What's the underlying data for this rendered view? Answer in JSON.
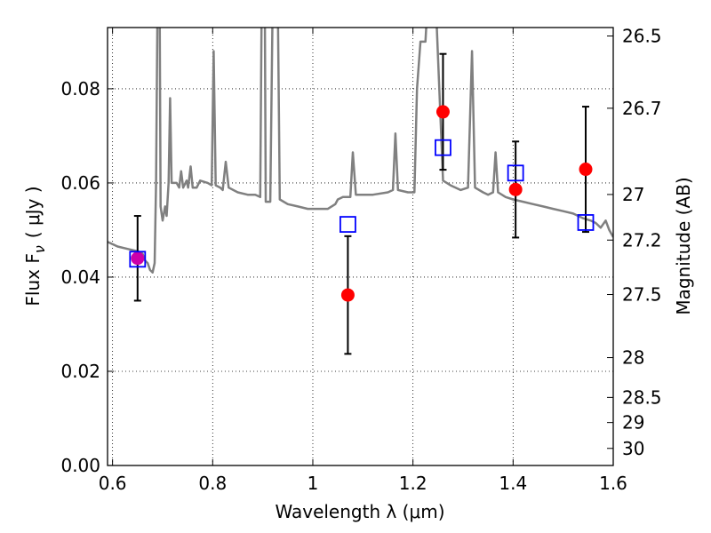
{
  "chart_data": {
    "type": "scatter",
    "xlabel": "Wavelength  λ (μm)",
    "ylabel": "Flux  F",
    "ylabel_sub": "ν",
    "ylabel_unit": "( μJy )",
    "ylabel_right": "Magnitude (AB)",
    "xlim": [
      0.59,
      1.6
    ],
    "ylim": [
      0.0,
      0.093
    ],
    "grid": true,
    "grid_style": "dotted",
    "x_ticks": [
      {
        "value": 0.6,
        "label": "0.6"
      },
      {
        "value": 0.8,
        "label": "0.8"
      },
      {
        "value": 1.0,
        "label": "1"
      },
      {
        "value": 1.2,
        "label": "1.2"
      },
      {
        "value": 1.4,
        "label": "1.4"
      },
      {
        "value": 1.6,
        "label": "1.6"
      }
    ],
    "y_ticks": [
      {
        "value": 0.0,
        "label": "0.00"
      },
      {
        "value": 0.02,
        "label": "0.02"
      },
      {
        "value": 0.04,
        "label": "0.04"
      },
      {
        "value": 0.06,
        "label": "0.06"
      },
      {
        "value": 0.08,
        "label": "0.08"
      }
    ],
    "right_ticks": [
      {
        "mag": 26.5,
        "label": "26.5"
      },
      {
        "mag": 26.7,
        "label": "26.7"
      },
      {
        "mag": 27.0,
        "label": "27"
      },
      {
        "mag": 27.2,
        "label": "27.2"
      },
      {
        "mag": 27.5,
        "label": "27.5"
      },
      {
        "mag": 28.0,
        "label": "28"
      },
      {
        "mag": 28.5,
        "label": "28.5"
      },
      {
        "mag": 29.0,
        "label": "29"
      },
      {
        "mag": 30.0,
        "label": "30"
      }
    ],
    "series": [
      {
        "kind": "line",
        "color": "#808080",
        "points": [
          [
            0.59,
            0.0475
          ],
          [
            0.61,
            0.0465
          ],
          [
            0.63,
            0.046
          ],
          [
            0.65,
            0.0455
          ],
          [
            0.66,
            0.045
          ],
          [
            0.665,
            0.0435
          ],
          [
            0.67,
            0.043
          ],
          [
            0.675,
            0.0415
          ],
          [
            0.68,
            0.041
          ],
          [
            0.684,
            0.043
          ],
          [
            0.687,
            0.06
          ],
          [
            0.69,
            0.1
          ],
          [
            0.694,
            0.1
          ],
          [
            0.696,
            0.055
          ],
          [
            0.7,
            0.052
          ],
          [
            0.705,
            0.055
          ],
          [
            0.708,
            0.053
          ],
          [
            0.712,
            0.06
          ],
          [
            0.715,
            0.078
          ],
          [
            0.718,
            0.06
          ],
          [
            0.722,
            0.06
          ],
          [
            0.728,
            0.06
          ],
          [
            0.733,
            0.059
          ],
          [
            0.737,
            0.0625
          ],
          [
            0.741,
            0.059
          ],
          [
            0.748,
            0.0605
          ],
          [
            0.751,
            0.059
          ],
          [
            0.756,
            0.0635
          ],
          [
            0.76,
            0.059
          ],
          [
            0.768,
            0.059
          ],
          [
            0.775,
            0.0605
          ],
          [
            0.79,
            0.06
          ],
          [
            0.798,
            0.0595
          ],
          [
            0.802,
            0.088
          ],
          [
            0.806,
            0.0595
          ],
          [
            0.815,
            0.059
          ],
          [
            0.82,
            0.0585
          ],
          [
            0.826,
            0.0645
          ],
          [
            0.832,
            0.059
          ],
          [
            0.85,
            0.058
          ],
          [
            0.87,
            0.0575
          ],
          [
            0.885,
            0.0575
          ],
          [
            0.895,
            0.057
          ],
          [
            0.898,
            0.1
          ],
          [
            0.904,
            0.1
          ],
          [
            0.906,
            0.056
          ],
          [
            0.915,
            0.056
          ],
          [
            0.92,
            0.1
          ],
          [
            0.93,
            0.1
          ],
          [
            0.934,
            0.0565
          ],
          [
            0.95,
            0.0555
          ],
          [
            0.97,
            0.055
          ],
          [
            0.99,
            0.0545
          ],
          [
            1.01,
            0.0545
          ],
          [
            1.03,
            0.0545
          ],
          [
            1.045,
            0.0555
          ],
          [
            1.05,
            0.0565
          ],
          [
            1.06,
            0.057
          ],
          [
            1.075,
            0.057
          ],
          [
            1.08,
            0.0665
          ],
          [
            1.086,
            0.0575
          ],
          [
            1.12,
            0.0575
          ],
          [
            1.15,
            0.058
          ],
          [
            1.16,
            0.0585
          ],
          [
            1.165,
            0.0705
          ],
          [
            1.17,
            0.0585
          ],
          [
            1.19,
            0.058
          ],
          [
            1.196,
            0.058
          ],
          [
            1.203,
            0.058
          ],
          [
            1.208,
            0.08
          ],
          [
            1.215,
            0.09
          ],
          [
            1.225,
            0.09
          ],
          [
            1.23,
            0.1
          ],
          [
            1.245,
            0.1
          ],
          [
            1.248,
            0.092
          ],
          [
            1.26,
            0.0605
          ],
          [
            1.275,
            0.0595
          ],
          [
            1.295,
            0.0585
          ],
          [
            1.31,
            0.059
          ],
          [
            1.318,
            0.088
          ],
          [
            1.324,
            0.059
          ],
          [
            1.34,
            0.058
          ],
          [
            1.35,
            0.0575
          ],
          [
            1.36,
            0.058
          ],
          [
            1.365,
            0.0665
          ],
          [
            1.37,
            0.058
          ],
          [
            1.385,
            0.057
          ],
          [
            1.4,
            0.0565
          ],
          [
            1.42,
            0.056
          ],
          [
            1.44,
            0.0555
          ],
          [
            1.46,
            0.055
          ],
          [
            1.48,
            0.0545
          ],
          [
            1.5,
            0.054
          ],
          [
            1.52,
            0.0535
          ],
          [
            1.54,
            0.0525
          ],
          [
            1.555,
            0.052
          ],
          [
            1.565,
            0.0515
          ],
          [
            1.575,
            0.0505
          ],
          [
            1.585,
            0.052
          ],
          [
            1.592,
            0.05
          ],
          [
            1.6,
            0.0485
          ]
        ]
      },
      {
        "kind": "markers",
        "shape": "circle",
        "color": "#ff0000",
        "points": [
          {
            "x": 0.65,
            "y": 0.044,
            "ylow": 0.035,
            "yhigh": 0.053,
            "color": "#cc00aa"
          },
          {
            "x": 1.07,
            "y": 0.0362,
            "ylow": 0.0237,
            "yhigh": 0.0487
          },
          {
            "x": 1.26,
            "y": 0.0751,
            "ylow": 0.0628,
            "yhigh": 0.0874
          },
          {
            "x": 1.405,
            "y": 0.0586,
            "ylow": 0.0484,
            "yhigh": 0.0688
          },
          {
            "x": 1.545,
            "y": 0.0629,
            "ylow": 0.0496,
            "yhigh": 0.0762
          }
        ]
      },
      {
        "kind": "markers",
        "shape": "square",
        "color": "#0000ff",
        "points": [
          {
            "x": 0.65,
            "y": 0.0438
          },
          {
            "x": 1.07,
            "y": 0.0512
          },
          {
            "x": 1.26,
            "y": 0.0675
          },
          {
            "x": 1.405,
            "y": 0.0621
          },
          {
            "x": 1.545,
            "y": 0.0516
          }
        ]
      }
    ]
  }
}
